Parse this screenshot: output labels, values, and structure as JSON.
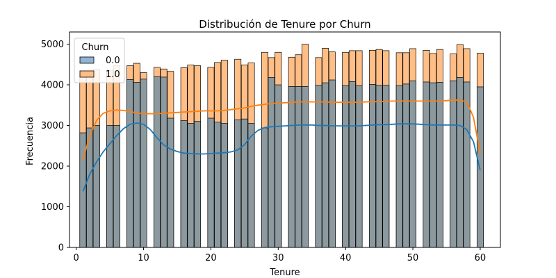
{
  "chart_data": {
    "type": "bar",
    "subtype": "stacked histogram with KDE",
    "title": "Distribución de Tenure por Churn",
    "xlabel": "Tenure",
    "ylabel": "Frecuencia",
    "xlim": [
      -1,
      63
    ],
    "ylim": [
      0,
      5300
    ],
    "xticks": [
      0,
      10,
      20,
      30,
      40,
      50,
      60
    ],
    "yticks": [
      0,
      1000,
      2000,
      3000,
      4000,
      5000
    ],
    "grid": false,
    "legend": {
      "title": "Churn",
      "placement": "top-left"
    },
    "colors": {
      "s0": "#8fb5d4",
      "s0_line": "#1f77b4",
      "s1": "#ffbe86",
      "s1_line": "#ff7f0e",
      "overlap": "#8c9a9f"
    },
    "x": [
      1,
      2,
      3,
      4,
      5,
      6,
      7,
      8,
      9,
      10,
      11,
      12,
      13,
      14,
      15,
      16,
      17,
      18,
      19,
      20,
      21,
      22,
      23,
      24,
      25,
      26,
      27,
      28,
      29,
      30,
      31,
      32,
      33,
      34,
      35,
      36,
      37,
      38,
      39,
      40,
      41,
      42,
      43,
      44,
      45,
      46,
      47,
      48,
      49,
      50,
      51,
      52,
      53,
      54,
      55,
      56,
      57,
      58,
      59,
      60
    ],
    "series": [
      {
        "name": "0.0",
        "values": [
          2820,
          2940,
          3000,
          0,
          3000,
          3000,
          0,
          4130,
          4060,
          4140,
          0,
          4200,
          4190,
          3180,
          0,
          3120,
          3050,
          3100,
          0,
          3180,
          3080,
          3050,
          0,
          3140,
          3160,
          3050,
          0,
          2940,
          4180,
          4000,
          0,
          3960,
          3960,
          3960,
          0,
          3990,
          4050,
          4120,
          0,
          3980,
          4080,
          3980,
          0,
          4010,
          3990,
          3990,
          0,
          3980,
          4020,
          4100,
          0,
          4070,
          4050,
          4060,
          0,
          4100,
          4180,
          4070,
          0,
          3950
        ],
        "kde": [
          [
            1,
            1380
          ],
          [
            2,
            1800
          ],
          [
            3,
            2100
          ],
          [
            4,
            2350
          ],
          [
            5,
            2550
          ],
          [
            6,
            2750
          ],
          [
            7,
            2920
          ],
          [
            8,
            3030
          ],
          [
            9,
            3060
          ],
          [
            10,
            3030
          ],
          [
            11,
            2900
          ],
          [
            12,
            2700
          ],
          [
            13,
            2520
          ],
          [
            14,
            2420
          ],
          [
            15,
            2360
          ],
          [
            16,
            2320
          ],
          [
            17,
            2310
          ],
          [
            18,
            2300
          ],
          [
            19,
            2300
          ],
          [
            20,
            2310
          ],
          [
            21,
            2320
          ],
          [
            22,
            2330
          ],
          [
            23,
            2350
          ],
          [
            24,
            2400
          ],
          [
            25,
            2530
          ],
          [
            26,
            2740
          ],
          [
            27,
            2880
          ],
          [
            28,
            2950
          ],
          [
            29,
            2970
          ],
          [
            30,
            2980
          ],
          [
            31,
            2990
          ],
          [
            32,
            3000
          ],
          [
            33,
            3010
          ],
          [
            34,
            3010
          ],
          [
            35,
            3010
          ],
          [
            36,
            3000
          ],
          [
            37,
            3000
          ],
          [
            38,
            2990
          ],
          [
            39,
            2990
          ],
          [
            40,
            2990
          ],
          [
            41,
            2990
          ],
          [
            42,
            2990
          ],
          [
            43,
            3000
          ],
          [
            44,
            3010
          ],
          [
            45,
            3020
          ],
          [
            46,
            3020
          ],
          [
            47,
            3030
          ],
          [
            48,
            3040
          ],
          [
            49,
            3040
          ],
          [
            50,
            3040
          ],
          [
            51,
            3030
          ],
          [
            52,
            3020
          ],
          [
            53,
            3010
          ],
          [
            54,
            3010
          ],
          [
            55,
            3010
          ],
          [
            56,
            3010
          ],
          [
            57,
            3000
          ],
          [
            58,
            2900
          ],
          [
            59,
            2600
          ],
          [
            60,
            1900
          ]
        ]
      },
      {
        "name": "1.0",
        "values": [
          4260,
          4310,
          4380,
          0,
          4360,
          4470,
          0,
          4470,
          4530,
          4300,
          0,
          4430,
          4390,
          4330,
          0,
          4420,
          4490,
          4470,
          0,
          4430,
          4550,
          4610,
          0,
          4630,
          4490,
          4540,
          0,
          4800,
          4670,
          4800,
          0,
          4680,
          4740,
          5000,
          0,
          4670,
          4900,
          4810,
          0,
          4800,
          4840,
          4840,
          0,
          4850,
          4870,
          4840,
          0,
          4790,
          4790,
          4890,
          0,
          4850,
          4770,
          4870,
          0,
          4760,
          4990,
          4890,
          0,
          4780
        ],
        "kde": [
          [
            1,
            2160
          ],
          [
            2,
            2750
          ],
          [
            3,
            3120
          ],
          [
            4,
            3300
          ],
          [
            5,
            3360
          ],
          [
            6,
            3380
          ],
          [
            7,
            3370
          ],
          [
            8,
            3340
          ],
          [
            9,
            3310
          ],
          [
            10,
            3290
          ],
          [
            11,
            3290
          ],
          [
            12,
            3290
          ],
          [
            13,
            3300
          ],
          [
            14,
            3310
          ],
          [
            15,
            3320
          ],
          [
            16,
            3330
          ],
          [
            17,
            3340
          ],
          [
            18,
            3350
          ],
          [
            19,
            3360
          ],
          [
            20,
            3360
          ],
          [
            21,
            3360
          ],
          [
            22,
            3370
          ],
          [
            23,
            3390
          ],
          [
            24,
            3410
          ],
          [
            25,
            3430
          ],
          [
            26,
            3470
          ],
          [
            27,
            3500
          ],
          [
            28,
            3520
          ],
          [
            29,
            3540
          ],
          [
            30,
            3550
          ],
          [
            31,
            3560
          ],
          [
            32,
            3570
          ],
          [
            33,
            3580
          ],
          [
            34,
            3580
          ],
          [
            35,
            3580
          ],
          [
            36,
            3580
          ],
          [
            37,
            3580
          ],
          [
            38,
            3570
          ],
          [
            39,
            3570
          ],
          [
            40,
            3570
          ],
          [
            41,
            3570
          ],
          [
            42,
            3570
          ],
          [
            43,
            3580
          ],
          [
            44,
            3580
          ],
          [
            45,
            3590
          ],
          [
            46,
            3590
          ],
          [
            47,
            3600
          ],
          [
            48,
            3600
          ],
          [
            49,
            3600
          ],
          [
            50,
            3600
          ],
          [
            51,
            3600
          ],
          [
            52,
            3600
          ],
          [
            53,
            3600
          ],
          [
            54,
            3600
          ],
          [
            55,
            3610
          ],
          [
            56,
            3630
          ],
          [
            57,
            3620
          ],
          [
            58,
            3580
          ],
          [
            59,
            3200
          ],
          [
            60,
            2300
          ]
        ]
      }
    ]
  }
}
